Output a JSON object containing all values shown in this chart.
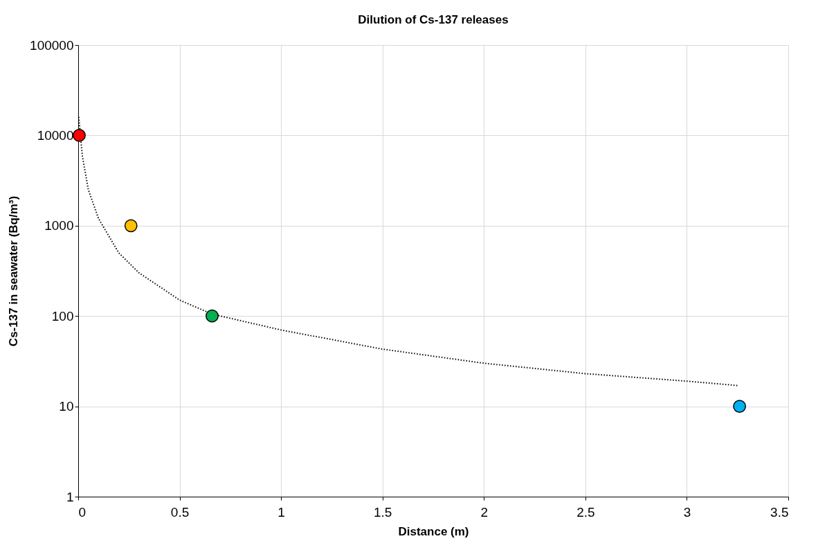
{
  "chart_data": {
    "type": "scatter",
    "title": "Dilution of Cs-137 releases",
    "xlabel": "Distance (m)",
    "ylabel": "Cs-137  in seawater (Bq/m³)",
    "series": [
      {
        "type": "line",
        "color": "#000000",
        "line_style": "dotted",
        "marker": "none",
        "x": [
          0.003,
          0.02,
          0.05,
          0.1,
          0.2,
          0.3,
          0.5,
          0.66,
          1,
          1.5,
          2,
          2.5,
          3,
          3.25
        ],
        "values": [
          16000,
          6000,
          2500,
          1200,
          500,
          300,
          150,
          105,
          70,
          43,
          30,
          23,
          19,
          17
        ]
      },
      {
        "marker": "circle",
        "x": [
          0.005,
          0.26,
          0.66,
          3.26
        ],
        "values": [
          10000,
          1000,
          100,
          10
        ],
        "colors": [
          "#ff0000",
          "#ffc000",
          "#00b050",
          "#00b0f0"
        ]
      }
    ],
    "xlim": [
      0,
      3.5
    ],
    "xticks": [
      0,
      0.5,
      1,
      1.5,
      2,
      2.5,
      3,
      3.5
    ],
    "ylim": [
      1,
      100000
    ],
    "yticks": [
      1,
      10,
      100,
      1000,
      10000,
      100000
    ],
    "log": "y",
    "grid": true
  }
}
